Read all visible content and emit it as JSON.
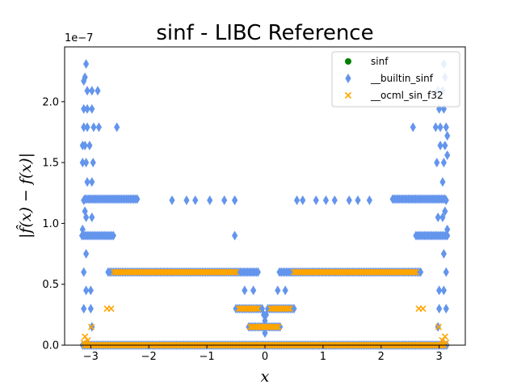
{
  "chart_data": {
    "type": "scatter",
    "title": "sinf - LIBC Reference",
    "xlabel": "x",
    "ylabel": "|f̂(x) − f(x)|",
    "y_multiplier": "1e−7",
    "xlim": [
      -3.45,
      3.45
    ],
    "ylim": [
      0,
      2.45
    ],
    "x_ticks": [
      -3,
      -2,
      -1,
      0,
      1,
      2,
      3
    ],
    "x_tick_labels": [
      "−3",
      "−2",
      "−1",
      "0",
      "1",
      "2",
      "3"
    ],
    "y_ticks": [
      0.0,
      0.5,
      1.0,
      1.5,
      2.0
    ],
    "y_tick_labels": [
      "0.0",
      "0.5",
      "1.0",
      "1.5",
      "2.0"
    ],
    "legend_position": "upper right",
    "grid": false,
    "series": [
      {
        "name": "sinf",
        "marker": "circle",
        "color": "#008000",
        "points": []
      },
      {
        "name": "__builtin_sinf",
        "marker": "diamond",
        "color": "#6495ED",
        "bands": [
          {
            "y": 0.0,
            "x_ranges": [
              [
                -3.14,
                3.14
              ]
            ]
          },
          {
            "y": 0.15,
            "x_ranges": [
              [
                -0.28,
                0.28
              ]
            ]
          },
          {
            "y": 0.3,
            "x_ranges": [
              [
                -0.5,
                -0.05
              ],
              [
                0.05,
                0.5
              ]
            ]
          },
          {
            "y": 0.6,
            "x_ranges": [
              [
                -2.7,
                -0.1
              ],
              [
                0.25,
                2.7
              ]
            ]
          },
          {
            "y": 0.9,
            "x_ranges": [
              [
                -3.15,
                -2.6
              ],
              [
                2.6,
                3.15
              ]
            ]
          },
          {
            "y": 1.2,
            "x_ranges": [
              [
                -3.1,
                -2.2
              ],
              [
                2.2,
                3.1
              ]
            ]
          }
        ],
        "points": [
          [
            -3.08,
            2.31
          ],
          [
            -3.1,
            2.2
          ],
          [
            -3.12,
            2.17
          ],
          [
            -3.06,
            2.09
          ],
          [
            -2.98,
            2.09
          ],
          [
            -2.88,
            2.09
          ],
          [
            -2.98,
            1.94
          ],
          [
            -3.06,
            1.94
          ],
          [
            -3.12,
            1.94
          ],
          [
            -3.12,
            1.79
          ],
          [
            -3.06,
            1.79
          ],
          [
            -2.95,
            1.79
          ],
          [
            -2.86,
            1.79
          ],
          [
            -2.55,
            1.79
          ],
          [
            -3.14,
            1.64
          ],
          [
            -3.1,
            1.64
          ],
          [
            -3.02,
            1.64
          ],
          [
            -3.14,
            1.5
          ],
          [
            -3.08,
            1.5
          ],
          [
            -2.96,
            1.5
          ],
          [
            -3.06,
            1.34
          ],
          [
            -2.98,
            1.34
          ],
          [
            -3.12,
            1.19
          ],
          [
            -3.1,
            1.1
          ],
          [
            -3.08,
            1.05
          ],
          [
            -2.98,
            1.05
          ],
          [
            -3.14,
            0.95
          ],
          [
            -0.52,
            0.9
          ],
          [
            -0.52,
            1.19
          ],
          [
            -1.6,
            1.19
          ],
          [
            -1.35,
            1.19
          ],
          [
            -1.2,
            1.19
          ],
          [
            -0.95,
            1.19
          ],
          [
            -0.7,
            1.19
          ],
          [
            -0.52,
            1.19
          ],
          [
            -3.08,
            0.75
          ],
          [
            -3.12,
            0.6
          ],
          [
            -3.0,
            0.45
          ],
          [
            -3.08,
            0.45
          ],
          [
            -3.12,
            0.3
          ],
          [
            -3.0,
            0.3
          ],
          [
            -2.98,
            0.15
          ],
          [
            3.08,
            2.31
          ],
          [
            3.1,
            2.2
          ],
          [
            3.06,
            2.09
          ],
          [
            2.98,
            2.09
          ],
          [
            3.0,
            1.94
          ],
          [
            3.08,
            1.94
          ],
          [
            3.12,
            1.79
          ],
          [
            3.02,
            1.79
          ],
          [
            2.94,
            1.79
          ],
          [
            2.55,
            1.79
          ],
          [
            3.14,
            1.72
          ],
          [
            3.1,
            1.64
          ],
          [
            3.02,
            1.64
          ],
          [
            3.14,
            1.56
          ],
          [
            3.08,
            1.5
          ],
          [
            2.96,
            1.5
          ],
          [
            3.06,
            1.34
          ],
          [
            3.12,
            1.19
          ],
          [
            3.1,
            1.1
          ],
          [
            3.06,
            1.05
          ],
          [
            2.98,
            1.05
          ],
          [
            3.14,
            0.95
          ],
          [
            3.08,
            0.75
          ],
          [
            3.12,
            0.6
          ],
          [
            3.0,
            0.45
          ],
          [
            3.08,
            0.45
          ],
          [
            3.12,
            0.3
          ],
          [
            3.0,
            0.3
          ],
          [
            2.98,
            0.15
          ],
          [
            0.55,
            1.19
          ],
          [
            0.65,
            1.19
          ],
          [
            0.88,
            1.19
          ],
          [
            1.05,
            1.19
          ],
          [
            1.2,
            1.19
          ],
          [
            1.45,
            1.19
          ],
          [
            1.6,
            1.19
          ],
          [
            1.8,
            1.19
          ],
          [
            0.0,
            0.1
          ],
          [
            0.0,
            0.2
          ],
          [
            -0.02,
            0.25
          ],
          [
            0.02,
            0.25
          ],
          [
            -0.2,
            0.45
          ],
          [
            0.22,
            0.45
          ],
          [
            -0.35,
            0.45
          ],
          [
            0.35,
            0.45
          ]
        ]
      },
      {
        "name": "__ocml_sin_f32",
        "marker": "x",
        "color": "#FFA500",
        "bands": [
          {
            "y": 0.0,
            "x_ranges": [
              [
                -3.1,
                3.1
              ]
            ]
          },
          {
            "y": 0.15,
            "x_ranges": [
              [
                -0.25,
                0.25
              ]
            ]
          },
          {
            "y": 0.3,
            "x_ranges": [
              [
                -0.45,
                -0.1
              ],
              [
                0.1,
                0.45
              ]
            ]
          },
          {
            "y": 0.6,
            "x_ranges": [
              [
                -2.6,
                -0.5
              ],
              [
                0.5,
                2.6
              ]
            ]
          }
        ],
        "points": [
          [
            -2.65,
            0.3
          ],
          [
            -2.72,
            0.3
          ],
          [
            2.65,
            0.3
          ],
          [
            2.72,
            0.3
          ],
          [
            -3.1,
            0.07
          ],
          [
            -3.05,
            0.04
          ],
          [
            3.1,
            0.07
          ],
          [
            3.05,
            0.04
          ],
          [
            -2.99,
            0.15
          ],
          [
            2.99,
            0.15
          ],
          [
            3.12,
            0.02
          ],
          [
            -3.12,
            0.02
          ]
        ]
      }
    ]
  }
}
